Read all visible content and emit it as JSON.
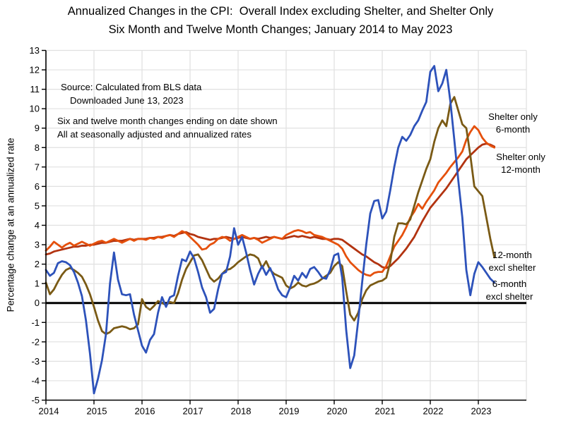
{
  "title": {
    "line1": "Annualized Changes in the CPI:  Overall Index excluding Shelter, and Shelter Only",
    "line2": "Six Month and Twelve Month Changes; January 2014 to May 2023"
  },
  "annotations": {
    "source1": "Source: Calculated from BLS data",
    "source2": "Downloaded June 13, 2023",
    "note1": "Six and twelve month changes ending on date shown",
    "note2": "All at seasonally adjusted and annualized rates"
  },
  "y_axis": {
    "label": "Percentage change at an annualized rate",
    "ticks": [
      13,
      12,
      11,
      10,
      9,
      8,
      7,
      6,
      5,
      4,
      3,
      2,
      1,
      0,
      -1,
      -2,
      -3,
      -4,
      -5
    ]
  },
  "x_axis": {
    "ticks": [
      2014,
      2015,
      2016,
      2017,
      2018,
      2019,
      2020,
      2021,
      2022,
      2023
    ]
  },
  "series_labels": {
    "shelter6": {
      "line1": "Shelter only",
      "line2": "6-month"
    },
    "shelter12": {
      "line1": "Shelter only",
      "line2": "12-month"
    },
    "excl12": {
      "line1": "12-month",
      "line2": "excl shelter"
    },
    "excl6": {
      "line1": "6-month",
      "line2": "excl shelter"
    }
  },
  "chart_data": {
    "type": "line",
    "title": "Annualized Changes in the CPI: Overall Index excluding Shelter, and Shelter Only — Six Month and Twelve Month Changes; January 2014 to May 2023",
    "xlabel": "",
    "ylabel": "Percentage change at an annualized rate",
    "frequency": "monthly",
    "x_start": "2014-01",
    "x_end": "2023-05",
    "ylim": [
      -5,
      13
    ],
    "xlim_years": [
      2014,
      2024
    ],
    "grid": true,
    "grid_color": "#e0e0e0",
    "zero_line_color": "#000000",
    "legend_position": "inline-right",
    "series": [
      {
        "name": "Shelter only 12-month",
        "color": "#b23310",
        "values": [
          2.5,
          2.55,
          2.65,
          2.7,
          2.75,
          2.8,
          2.85,
          2.9,
          2.9,
          2.95,
          2.95,
          3.0,
          3.0,
          3.05,
          3.1,
          3.1,
          3.15,
          3.2,
          3.2,
          3.2,
          3.25,
          3.3,
          3.25,
          3.3,
          3.3,
          3.3,
          3.35,
          3.35,
          3.4,
          3.4,
          3.45,
          3.5,
          3.45,
          3.55,
          3.6,
          3.65,
          3.55,
          3.5,
          3.4,
          3.35,
          3.3,
          3.25,
          3.3,
          3.3,
          3.35,
          3.4,
          3.35,
          3.3,
          3.35,
          3.4,
          3.35,
          3.3,
          3.35,
          3.3,
          3.35,
          3.4,
          3.35,
          3.4,
          3.35,
          3.3,
          3.35,
          3.4,
          3.45,
          3.4,
          3.45,
          3.4,
          3.35,
          3.4,
          3.35,
          3.3,
          3.3,
          3.25,
          3.3,
          3.3,
          3.25,
          3.1,
          2.95,
          2.8,
          2.65,
          2.5,
          2.4,
          2.25,
          2.1,
          2.0,
          1.85,
          1.8,
          1.9,
          2.1,
          2.3,
          2.55,
          2.8,
          3.1,
          3.4,
          3.8,
          4.2,
          4.55,
          4.9,
          5.15,
          5.4,
          5.65,
          5.9,
          6.2,
          6.5,
          6.8,
          7.1,
          7.4,
          7.6,
          7.8,
          8.0,
          8.15,
          8.2,
          8.15,
          8.05
        ]
      },
      {
        "name": "Shelter only 6-month",
        "color": "#e5500c",
        "values": [
          2.7,
          2.9,
          3.15,
          3.0,
          2.85,
          3.0,
          3.1,
          2.95,
          3.05,
          3.15,
          3.05,
          2.95,
          3.05,
          3.15,
          3.2,
          3.1,
          3.2,
          3.3,
          3.2,
          3.1,
          3.2,
          3.3,
          3.2,
          3.3,
          3.3,
          3.25,
          3.35,
          3.3,
          3.4,
          3.35,
          3.45,
          3.5,
          3.4,
          3.55,
          3.7,
          3.6,
          3.4,
          3.2,
          3.0,
          2.75,
          2.8,
          3.0,
          3.1,
          3.3,
          3.4,
          3.35,
          3.2,
          3.3,
          3.4,
          3.5,
          3.4,
          3.3,
          3.35,
          3.25,
          3.1,
          3.2,
          3.3,
          3.4,
          3.35,
          3.3,
          3.5,
          3.6,
          3.7,
          3.75,
          3.7,
          3.6,
          3.65,
          3.5,
          3.45,
          3.4,
          3.3,
          3.2,
          3.1,
          3.0,
          2.8,
          2.4,
          2.1,
          1.9,
          1.7,
          1.55,
          1.45,
          1.4,
          1.55,
          1.6,
          1.6,
          1.9,
          2.4,
          2.9,
          3.2,
          3.5,
          3.9,
          4.4,
          4.7,
          5.1,
          4.85,
          5.2,
          5.5,
          5.8,
          6.2,
          6.45,
          6.7,
          7.0,
          7.25,
          7.5,
          7.8,
          8.4,
          8.8,
          9.1,
          8.9,
          8.5,
          8.25,
          8.1,
          8.0
        ]
      },
      {
        "name": "12-month excl shelter",
        "color": "#7a5a15",
        "values": [
          1.05,
          0.45,
          0.7,
          1.1,
          1.45,
          1.7,
          1.8,
          1.7,
          1.55,
          1.35,
          0.95,
          0.45,
          -0.2,
          -0.9,
          -1.45,
          -1.6,
          -1.5,
          -1.3,
          -1.25,
          -1.2,
          -1.25,
          -1.35,
          -1.3,
          -1.1,
          0.2,
          -0.2,
          -0.35,
          -0.15,
          0.1,
          0.0,
          -0.1,
          0.05,
          0.0,
          0.5,
          1.2,
          1.75,
          2.1,
          2.45,
          2.5,
          2.2,
          1.75,
          1.3,
          1.1,
          1.25,
          1.5,
          1.7,
          1.75,
          1.9,
          2.1,
          2.25,
          2.4,
          2.5,
          2.45,
          2.3,
          1.8,
          2.15,
          1.7,
          1.5,
          1.4,
          1.3,
          0.9,
          0.75,
          0.85,
          1.05,
          0.9,
          0.85,
          0.95,
          1.0,
          1.1,
          1.25,
          1.4,
          1.55,
          1.9,
          2.1,
          1.9,
          0.6,
          -0.6,
          -0.9,
          -0.5,
          0.2,
          0.65,
          0.9,
          1.0,
          1.1,
          1.15,
          1.3,
          2.1,
          3.4,
          4.1,
          4.1,
          4.05,
          4.3,
          5.0,
          5.7,
          6.3,
          6.9,
          7.4,
          8.3,
          9.0,
          9.4,
          9.1,
          10.25,
          10.6,
          9.9,
          9.2,
          9.0,
          7.6,
          6.0,
          5.75,
          5.5,
          4.4,
          3.3,
          2.35
        ]
      },
      {
        "name": "6-month excl shelter",
        "color": "#2d52ba",
        "values": [
          1.7,
          1.4,
          1.55,
          2.05,
          2.15,
          2.1,
          1.95,
          1.6,
          1.05,
          0.35,
          -0.9,
          -2.6,
          -4.65,
          -3.9,
          -2.95,
          -1.6,
          1.0,
          2.6,
          1.2,
          0.45,
          0.4,
          0.45,
          -0.6,
          -1.4,
          -2.2,
          -2.55,
          -1.9,
          -1.6,
          -0.5,
          0.3,
          -0.2,
          0.3,
          0.4,
          1.4,
          2.25,
          2.15,
          2.65,
          2.3,
          1.6,
          0.8,
          0.3,
          -0.5,
          -0.3,
          0.7,
          1.5,
          1.6,
          2.4,
          3.85,
          3.0,
          3.4,
          2.6,
          1.7,
          0.95,
          1.5,
          1.9,
          1.45,
          1.8,
          1.3,
          0.7,
          0.4,
          0.3,
          0.8,
          1.4,
          1.15,
          1.55,
          1.3,
          1.75,
          1.85,
          1.6,
          1.3,
          1.25,
          1.7,
          2.45,
          2.55,
          1.3,
          -1.4,
          -3.35,
          -2.7,
          -0.9,
          1.1,
          3.0,
          4.6,
          5.25,
          5.3,
          4.35,
          4.7,
          5.8,
          7.0,
          8.0,
          8.55,
          8.35,
          8.65,
          9.1,
          9.4,
          9.9,
          10.35,
          11.9,
          12.2,
          10.9,
          11.3,
          12.0,
          10.4,
          8.4,
          6.3,
          4.4,
          1.7,
          0.4,
          1.5,
          2.1,
          1.85,
          1.55,
          1.25,
          1.05
        ]
      }
    ]
  }
}
